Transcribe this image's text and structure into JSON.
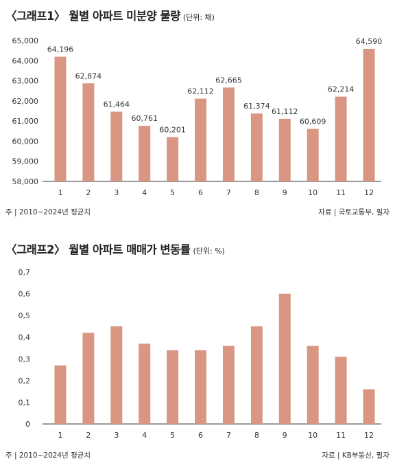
{
  "chart_data": [
    {
      "type": "bar",
      "title": "〈그래프1〉 월별 아파트 미분양 물량",
      "unit": "(단위: 채)",
      "categories": [
        "1",
        "2",
        "3",
        "4",
        "5",
        "6",
        "7",
        "8",
        "9",
        "10",
        "11",
        "12"
      ],
      "values": [
        64196,
        62874,
        61464,
        60761,
        60201,
        62112,
        62665,
        61374,
        61112,
        60609,
        62214,
        64590
      ],
      "data_labels": [
        "64,196",
        "62,874",
        "61,464",
        "60,761",
        "60,201",
        "62,112",
        "62,665",
        "61,374",
        "61,112",
        "60,609",
        "62,214",
        "64,590"
      ],
      "ylim": [
        58000,
        65000
      ],
      "yticks": [
        58000,
        59000,
        60000,
        61000,
        62000,
        63000,
        64000,
        65000
      ],
      "ytick_labels": [
        "58,000",
        "59,000",
        "60,000",
        "61,000",
        "62,000",
        "63,000",
        "64,000",
        "65,000"
      ],
      "grid": false,
      "bar_color": "#d99682",
      "note": "주 | 2010~2024년 평균치",
      "source": "자료 | 국토교통부, 필자"
    },
    {
      "type": "bar",
      "title": "〈그래프2〉 월별 아파트 매매가 변동률",
      "unit": "(단위: %)",
      "categories": [
        "1",
        "2",
        "3",
        "4",
        "5",
        "6",
        "7",
        "8",
        "9",
        "10",
        "11",
        "12"
      ],
      "values": [
        0.27,
        0.42,
        0.45,
        0.37,
        0.34,
        0.34,
        0.36,
        0.45,
        0.6,
        0.36,
        0.31,
        0.16
      ],
      "ylim": [
        0,
        0.7
      ],
      "yticks": [
        0,
        0.1,
        0.2,
        0.3,
        0.4,
        0.5,
        0.6,
        0.7
      ],
      "ytick_labels": [
        "0",
        "0,1",
        "0,2",
        "0,3",
        "0,4",
        "0,5",
        "0,6",
        "0,7"
      ],
      "grid": false,
      "bar_color": "#d99682",
      "note": "주 | 2010~2024년 평균치",
      "source": "자료 | KB부동산, 필자"
    }
  ]
}
